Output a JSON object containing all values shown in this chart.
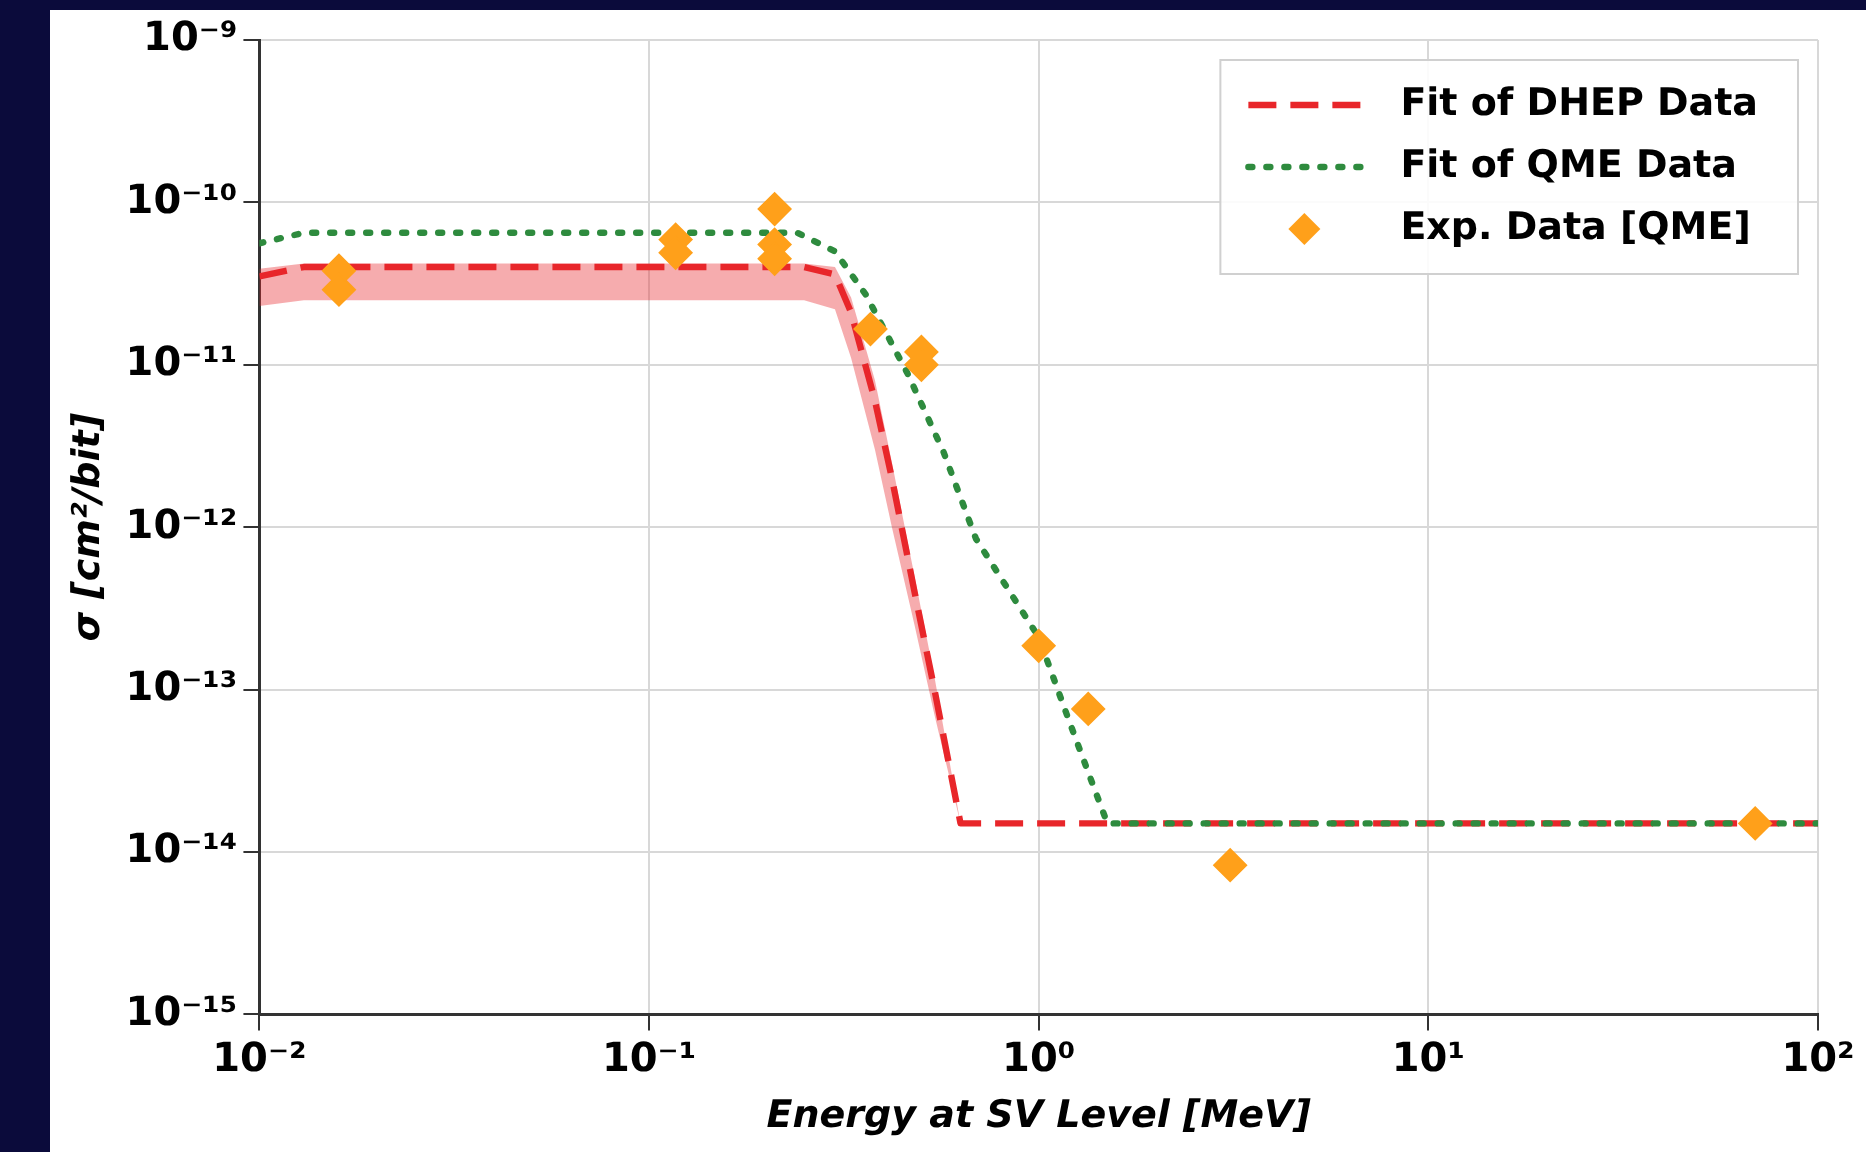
{
  "chart_data": {
    "type": "line",
    "xlabel": "Energy at SV Level [MeV]",
    "ylabel": "σ [cm²/bit]",
    "log": "xy",
    "grid": true,
    "legend": "top right",
    "xlim": [
      0.01,
      100
    ],
    "xticks": [
      {
        "value": 0.01,
        "label": "10⁻²"
      },
      {
        "value": 0.1,
        "label": "10⁻¹"
      },
      {
        "value": 1,
        "label": "10⁰"
      },
      {
        "value": 10,
        "label": "10¹"
      },
      {
        "value": 100,
        "label": "10²"
      }
    ],
    "ylim": [
      1e-15,
      1e-09
    ],
    "yticks": [
      {
        "value": 1e-15,
        "label": "10⁻¹⁵"
      },
      {
        "value": 1e-14,
        "label": "10⁻¹⁴"
      },
      {
        "value": 1e-13,
        "label": "10⁻¹³"
      },
      {
        "value": 1e-12,
        "label": "10⁻¹²"
      },
      {
        "value": 1e-11,
        "label": "10⁻¹¹"
      },
      {
        "value": 1e-10,
        "label": "10⁻¹⁰"
      },
      {
        "value": 1e-09,
        "label": "10⁻⁹"
      }
    ],
    "series": [
      {
        "name": "Fit of DHEP Data",
        "type": "line",
        "line_style": "dashed",
        "marker": "none",
        "color": "#e8262a",
        "x": [
          0.01,
          0.013,
          0.25,
          0.3,
          0.33,
          0.38,
          0.42,
          0.48,
          0.54,
          0.63,
          100
        ],
        "values": [
          3.5e-11,
          4e-11,
          4e-11,
          3.6e-11,
          2.1e-11,
          6e-12,
          2e-12,
          4e-13,
          1e-13,
          1.5e-14,
          1.5e-14
        ],
        "lower": [
          2.3e-11,
          2.5e-11,
          2.5e-11,
          2.2e-11,
          1.1e-11,
          3e-12,
          1e-12,
          2.5e-13,
          7e-14,
          1.5e-14,
          1.5e-14
        ],
        "upper": [
          3.9e-11,
          4.2e-11,
          4.2e-11,
          4e-11,
          2.6e-11,
          8e-12,
          2.5e-12,
          5e-13,
          1.2e-13,
          1.5e-14,
          1.5e-14
        ]
      },
      {
        "name": "Fit of QME Data",
        "type": "line",
        "line_style": "dotted",
        "marker": "none",
        "color": "#2e8b3e",
        "x": [
          0.01,
          0.013,
          0.24,
          0.3,
          0.36,
          0.46,
          0.57,
          0.69,
          1.0,
          1.2,
          1.5,
          100
        ],
        "values": [
          5.6e-11,
          6.5e-11,
          6.5e-11,
          5e-11,
          2.7e-11,
          8.9e-12,
          2.9e-12,
          8.5e-13,
          2.1e-13,
          6.3e-14,
          1.5e-14,
          1.5e-14
        ]
      },
      {
        "name": "Exp. Data [QME]",
        "type": "scatter",
        "marker": "diamond",
        "color": "#ffa01a",
        "x": [
          0.016,
          0.016,
          0.117,
          0.117,
          0.21,
          0.21,
          0.21,
          0.37,
          0.5,
          0.5,
          1.0,
          1.34,
          3.1,
          69
        ],
        "values": [
          3.8e-11,
          2.9e-11,
          5.9e-11,
          4.9e-11,
          9.1e-11,
          5.5e-11,
          4.5e-11,
          1.66e-11,
          1.2e-11,
          1e-11,
          1.86e-13,
          7.6e-14,
          8.3e-15,
          1.5e-14
        ]
      }
    ]
  }
}
